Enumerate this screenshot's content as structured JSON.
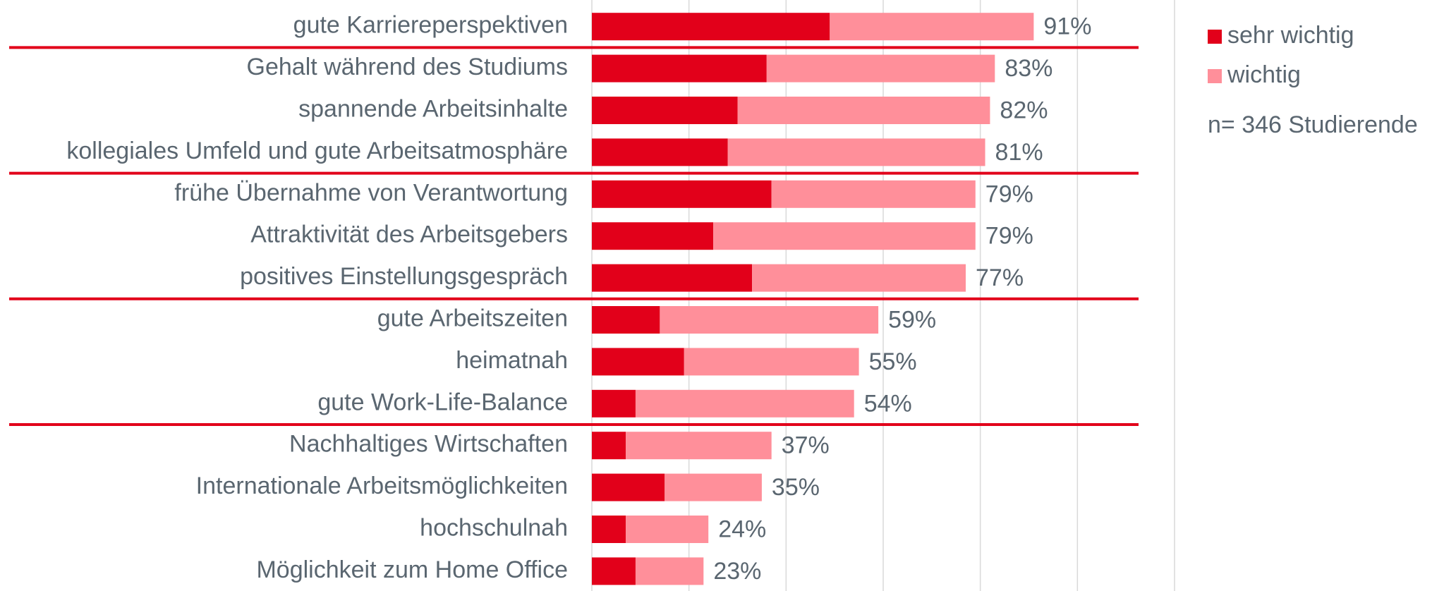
{
  "chart_data": {
    "type": "stacked-barh",
    "categories": [
      "gute Karriereperspektiven",
      "Gehalt während des Studiums",
      "spannende Arbeitsinhalte",
      "kollegiales Umfeld und gute Arbeitsatmosphäre",
      "frühe Übernahme von Verantwortung",
      "Attraktivität des Arbeitsgebers",
      "positives Einstellungsgespräch",
      "gute Arbeitszeiten",
      "heimatnah",
      "gute Work-Life-Balance",
      "Nachhaltiges Wirtschaften",
      "Internationale Arbeitsmöglichkeiten",
      "hochschulnah",
      "Möglichkeit zum Home Office"
    ],
    "series": [
      {
        "name": "sehr wichtig",
        "color": "#e2001a",
        "values": [
          49,
          36,
          30,
          28,
          37,
          25,
          33,
          14,
          19,
          9,
          7,
          15,
          7,
          9
        ]
      },
      {
        "name": "wichtig",
        "color": "#ff8f9a",
        "values": [
          42,
          47,
          52,
          53,
          42,
          54,
          44,
          45,
          36,
          45,
          30,
          20,
          17,
          14
        ]
      }
    ],
    "totals": [
      91,
      83,
      82,
      81,
      79,
      79,
      77,
      59,
      55,
      54,
      37,
      35,
      24,
      23
    ],
    "total_labels": [
      "91%",
      "83%",
      "82%",
      "81%",
      "79%",
      "79%",
      "77%",
      "59%",
      "55%",
      "54%",
      "37%",
      "35%",
      "24%",
      "23%"
    ],
    "annotation": "n= 346 Studierende",
    "xlim": [
      0,
      120
    ],
    "xticks": [
      0,
      20,
      40,
      60,
      80,
      100,
      120
    ],
    "grid": true,
    "legend": "upper right"
  }
}
